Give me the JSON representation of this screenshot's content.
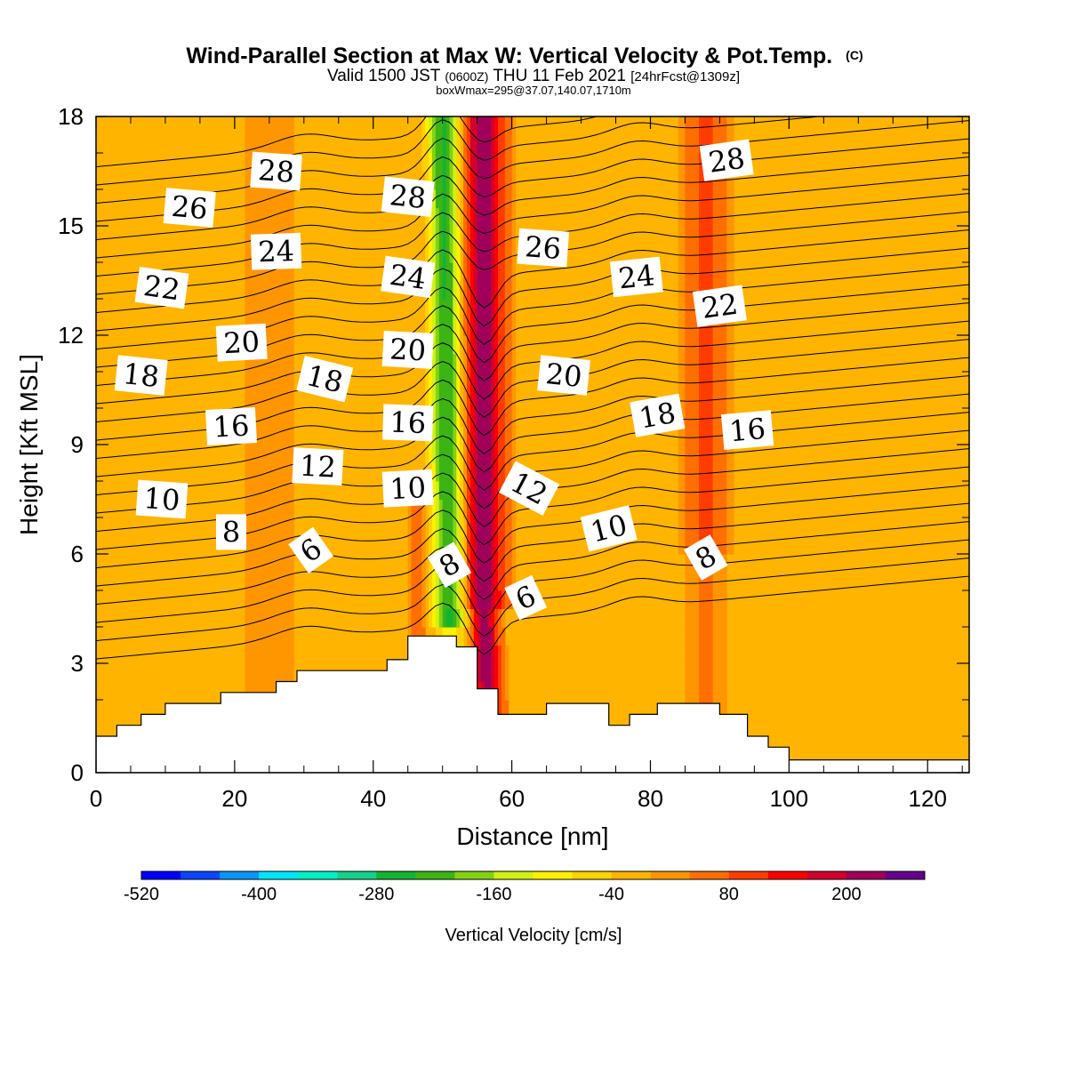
{
  "chart_data": {
    "type": "heatmap",
    "title": "Wind-Parallel Section at Max W: Vertical Velocity & Pot.Temp.",
    "title_mark": "(C)",
    "subtitle_main": "Valid 1500 JST",
    "subtitle_z": "(0600Z)",
    "subtitle_date": "THU 11 Feb 2021",
    "subtitle_fcst": "[24hrFcst@1309z]",
    "subtitle2": "boxWmax=295@37.07,140.07,1710m",
    "xlabel": "Distance [nm]",
    "ylabel": "Height [Kft MSL]",
    "xlim": [
      0,
      126
    ],
    "ylim": [
      0,
      18
    ],
    "x_ticks": [
      0,
      20,
      40,
      60,
      80,
      100,
      120
    ],
    "y_ticks": [
      0,
      3,
      6,
      9,
      12,
      15,
      18
    ],
    "colorbar": {
      "label": "Vertical Velocity [cm/s]",
      "tick_labels": [
        "-520",
        "-400",
        "-280",
        "-160",
        "-40",
        "80",
        "200"
      ],
      "tick_values": [
        -520,
        -400,
        -280,
        -160,
        -40,
        80,
        200
      ],
      "min": -520,
      "step": 40,
      "colors": [
        "#0000ff",
        "#0a46ff",
        "#0a96ff",
        "#00e6ff",
        "#00f0c8",
        "#14d28c",
        "#14b432",
        "#3cb414",
        "#82d214",
        "#d2f014",
        "#fff000",
        "#ffd200",
        "#ffb400",
        "#ff9600",
        "#ff6e00",
        "#ff3c00",
        "#ff0000",
        "#d2002d",
        "#a0005a",
        "#64008c"
      ]
    },
    "background_w": 0,
    "updraft_peak_w": 230,
    "downdraft_peak_w": -250,
    "theta_contour_labels": [
      {
        "value": "28",
        "x": 26,
        "y": 16.5
      },
      {
        "value": "28",
        "x": 45,
        "y": 15.8
      },
      {
        "value": "28",
        "x": 91,
        "y": 16.8
      },
      {
        "value": "26",
        "x": 13.5,
        "y": 15.5
      },
      {
        "value": "26",
        "x": 64.5,
        "y": 14.4
      },
      {
        "value": "24",
        "x": 26,
        "y": 14.3
      },
      {
        "value": "24",
        "x": 45,
        "y": 13.6
      },
      {
        "value": "24",
        "x": 78,
        "y": 13.6
      },
      {
        "value": "22",
        "x": 9.5,
        "y": 13.3
      },
      {
        "value": "22",
        "x": 90,
        "y": 12.8
      },
      {
        "value": "20",
        "x": 21,
        "y": 11.8
      },
      {
        "value": "20",
        "x": 45,
        "y": 11.6
      },
      {
        "value": "20",
        "x": 67.5,
        "y": 10.9
      },
      {
        "value": "18",
        "x": 6.5,
        "y": 10.9
      },
      {
        "value": "18",
        "x": 33,
        "y": 10.8
      },
      {
        "value": "18",
        "x": 81,
        "y": 9.8
      },
      {
        "value": "16",
        "x": 19.5,
        "y": 9.5
      },
      {
        "value": "16",
        "x": 45,
        "y": 9.6
      },
      {
        "value": "16",
        "x": 94,
        "y": 9.4
      },
      {
        "value": "12",
        "x": 32,
        "y": 8.4
      },
      {
        "value": "12",
        "x": 62.5,
        "y": 7.8
      },
      {
        "value": "10",
        "x": 9.5,
        "y": 7.5
      },
      {
        "value": "10",
        "x": 45,
        "y": 7.8
      },
      {
        "value": "10",
        "x": 74,
        "y": 6.7
      },
      {
        "value": "8",
        "x": 19.5,
        "y": 6.6
      },
      {
        "value": "8",
        "x": 51,
        "y": 5.7
      },
      {
        "value": "8",
        "x": 88,
        "y": 5.9
      },
      {
        "value": "6",
        "x": 31,
        "y": 6.1
      },
      {
        "value": "6",
        "x": 62,
        "y": 4.8
      }
    ],
    "terrain": [
      {
        "x": 0,
        "h": 1.0
      },
      {
        "x": 3,
        "h": 1.3
      },
      {
        "x": 6.5,
        "h": 1.6
      },
      {
        "x": 10,
        "h": 1.9
      },
      {
        "x": 18,
        "h": 2.2
      },
      {
        "x": 26,
        "h": 2.5
      },
      {
        "x": 29,
        "h": 2.8
      },
      {
        "x": 42,
        "h": 3.1
      },
      {
        "x": 45,
        "h": 3.75
      },
      {
        "x": 52,
        "h": 3.45
      },
      {
        "x": 55,
        "h": 2.3
      },
      {
        "x": 58,
        "h": 1.6
      },
      {
        "x": 65,
        "h": 1.9
      },
      {
        "x": 74,
        "h": 1.3
      },
      {
        "x": 77,
        "h": 1.6
      },
      {
        "x": 81,
        "h": 1.9
      },
      {
        "x": 90,
        "h": 1.6
      },
      {
        "x": 94,
        "h": 1.0
      },
      {
        "x": 97,
        "h": 0.7
      },
      {
        "x": 100,
        "h": 0.35
      },
      {
        "x": 126,
        "h": 0.35
      }
    ]
  }
}
